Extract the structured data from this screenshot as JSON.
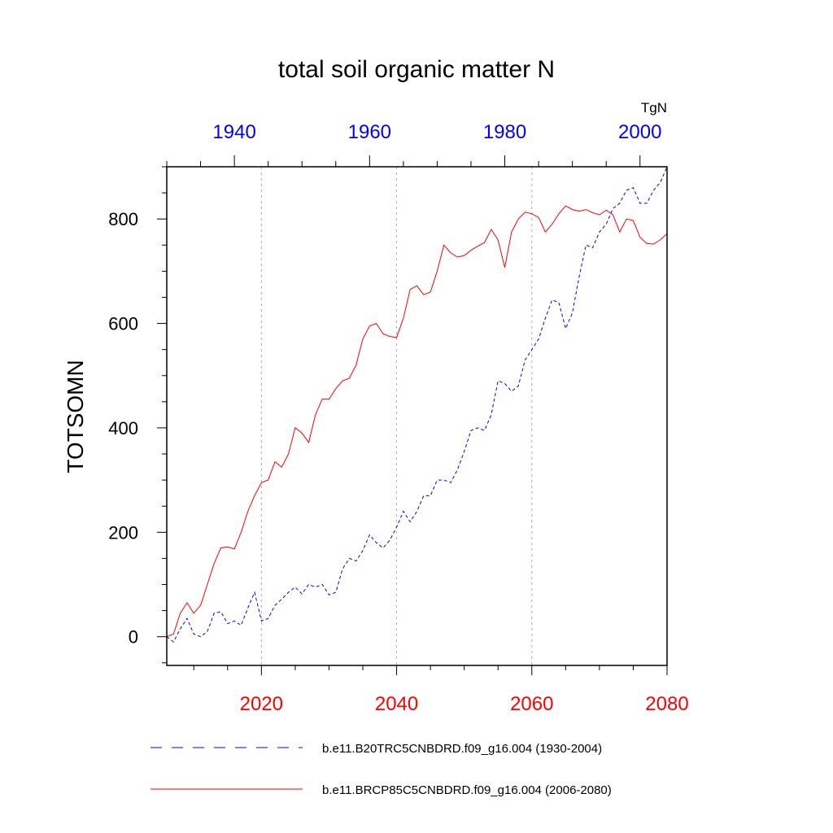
{
  "chart_data": {
    "type": "line",
    "title": "total soil organic matter N",
    "ylabel": "TOTSOMN",
    "units": "TgN",
    "ylim": [
      -55,
      900
    ],
    "yticks": [
      0,
      200,
      400,
      600,
      800
    ],
    "ytick_labels": [
      "0",
      "200",
      "400",
      "600",
      "800"
    ],
    "grid": "dotted vertical lines at bottom-axis major ticks",
    "bottom_axis": {
      "range": [
        2006,
        2080
      ],
      "ticks": [
        2020,
        2040,
        2060,
        2080
      ],
      "tick_labels": [
        "2020",
        "2040",
        "2060",
        "2080"
      ],
      "color": "#ff0000"
    },
    "top_axis": {
      "range": [
        1930,
        2004
      ],
      "ticks": [
        1940,
        1960,
        1980,
        2000
      ],
      "tick_labels": [
        "1940",
        "1960",
        "1980",
        "2000"
      ],
      "color": "#0000ff"
    },
    "series": [
      {
        "name": "b.e11.B20TRC5CNBDRD.f09_g16.004 (1930-2004)",
        "color": "#0000ff",
        "dash": "dashed",
        "axis": "top",
        "x_start": 1930,
        "values": [
          0,
          -10,
          15,
          35,
          5,
          0,
          10,
          45,
          48,
          25,
          30,
          22,
          55,
          85,
          30,
          35,
          60,
          72,
          85,
          95,
          82,
          100,
          95,
          100,
          80,
          85,
          130,
          150,
          145,
          165,
          195,
          180,
          170,
          185,
          210,
          240,
          220,
          240,
          270,
          270,
          300,
          300,
          295,
          320,
          355,
          395,
          400,
          395,
          425,
          490,
          485,
          470,
          480,
          530,
          550,
          570,
          610,
          645,
          640,
          590,
          620,
          690,
          750,
          745,
          775,
          790,
          820,
          830,
          855,
          860,
          830,
          830,
          855,
          870,
          900
        ]
      },
      {
        "name": "b.e11.BRCP85C5CNBDRD.f09_g16.004 (2006-2080)",
        "color": "#ff0000",
        "dash": "solid",
        "axis": "bottom",
        "x_start": 2006,
        "values": [
          0,
          5,
          45,
          65,
          45,
          60,
          100,
          140,
          170,
          172,
          168,
          200,
          240,
          270,
          295,
          300,
          335,
          325,
          350,
          400,
          390,
          372,
          425,
          455,
          455,
          475,
          490,
          495,
          520,
          570,
          595,
          600,
          580,
          575,
          573,
          610,
          665,
          672,
          655,
          660,
          700,
          750,
          735,
          727,
          730,
          740,
          748,
          755,
          780,
          760,
          707,
          775,
          800,
          813,
          810,
          803,
          775,
          790,
          810,
          825,
          818,
          815,
          818,
          812,
          808,
          817,
          808,
          775,
          800,
          797,
          765,
          753,
          752,
          760,
          772
        ]
      }
    ],
    "legend": {
      "placement": "below",
      "entries": [
        "b.e11.B20TRC5CNBDRD.f09_g16.004 (1930-2004)",
        "b.e11.BRCP85C5CNBDRD.f09_g16.004 (2006-2080)"
      ]
    }
  }
}
